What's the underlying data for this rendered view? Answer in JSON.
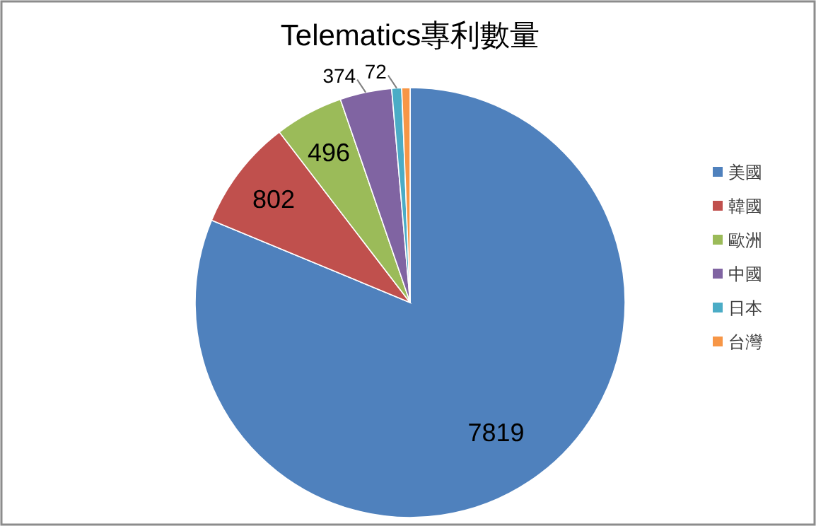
{
  "chart_data": {
    "type": "pie",
    "title": "Telematics專利數量",
    "categories": [
      "美國",
      "韓國",
      "歐洲",
      "中國",
      "日本",
      "台灣"
    ],
    "values": [
      7819,
      802,
      496,
      374,
      72,
      60
    ],
    "value_labels": [
      "7819",
      "802",
      "496",
      "374",
      "72",
      null
    ],
    "colors": [
      "#4f81bd",
      "#c0504d",
      "#9bbb59",
      "#8064a2",
      "#4bacc6",
      "#f79646"
    ],
    "legend": "right"
  }
}
